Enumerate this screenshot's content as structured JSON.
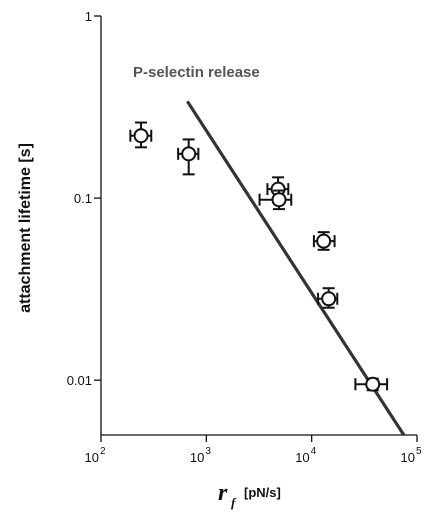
{
  "chart_data": {
    "type": "scatter",
    "title": "",
    "annotation": "P-selectin release",
    "xlabel": {
      "symbol": "r",
      "subscript": "f",
      "unit": "[pN/s]"
    },
    "ylabel": "attachment lifetime [s]",
    "xscale": "log",
    "yscale": "log",
    "xlim": [
      100,
      100000
    ],
    "ylim": [
      0.005,
      1
    ],
    "xticks": [
      {
        "value": 100,
        "base": "10",
        "exp": "2"
      },
      {
        "value": 1000,
        "base": "10",
        "exp": "3"
      },
      {
        "value": 10000,
        "base": "10",
        "exp": "4"
      },
      {
        "value": 100000,
        "base": "10",
        "exp": "5"
      }
    ],
    "yticks": [
      {
        "value": 1,
        "label": "1"
      },
      {
        "value": 0.1,
        "label": "0.1"
      },
      {
        "value": 0.01,
        "label": "0.01"
      }
    ],
    "grid": false,
    "series": [
      {
        "marker": "open-circle",
        "points": [
          {
            "x": 240,
            "y": 0.22,
            "xerr": [
              190,
              300
            ],
            "yerr": [
              0.19,
              0.26
            ]
          },
          {
            "x": 680,
            "y": 0.175,
            "xerr": [
              540,
              840
            ],
            "yerr": [
              0.135,
              0.21
            ]
          },
          {
            "x": 4800,
            "y": 0.112,
            "xerr": [
              3800,
              6000
            ],
            "yerr": [
              0.095,
              0.13
            ]
          },
          {
            "x": 4900,
            "y": 0.098,
            "xerr": [
              3200,
              6400
            ],
            "yerr": [
              0.087,
              0.11
            ]
          },
          {
            "x": 13000,
            "y": 0.058,
            "xerr": [
              10500,
              16500
            ],
            "yerr": [
              0.052,
              0.065
            ]
          },
          {
            "x": 14500,
            "y": 0.028,
            "xerr": [
              11500,
              17500
            ],
            "yerr": [
              0.025,
              0.032
            ]
          },
          {
            "x": 38000,
            "y": 0.0095,
            "xerr": [
              26000,
              52000
            ],
            "yerr": [
              0.0088,
              0.0102
            ]
          }
        ]
      }
    ],
    "fit_line": {
      "color": "#333333",
      "points": [
        {
          "x": 660,
          "y": 0.34
        },
        {
          "x": 75000,
          "y": 0.005
        }
      ]
    }
  }
}
